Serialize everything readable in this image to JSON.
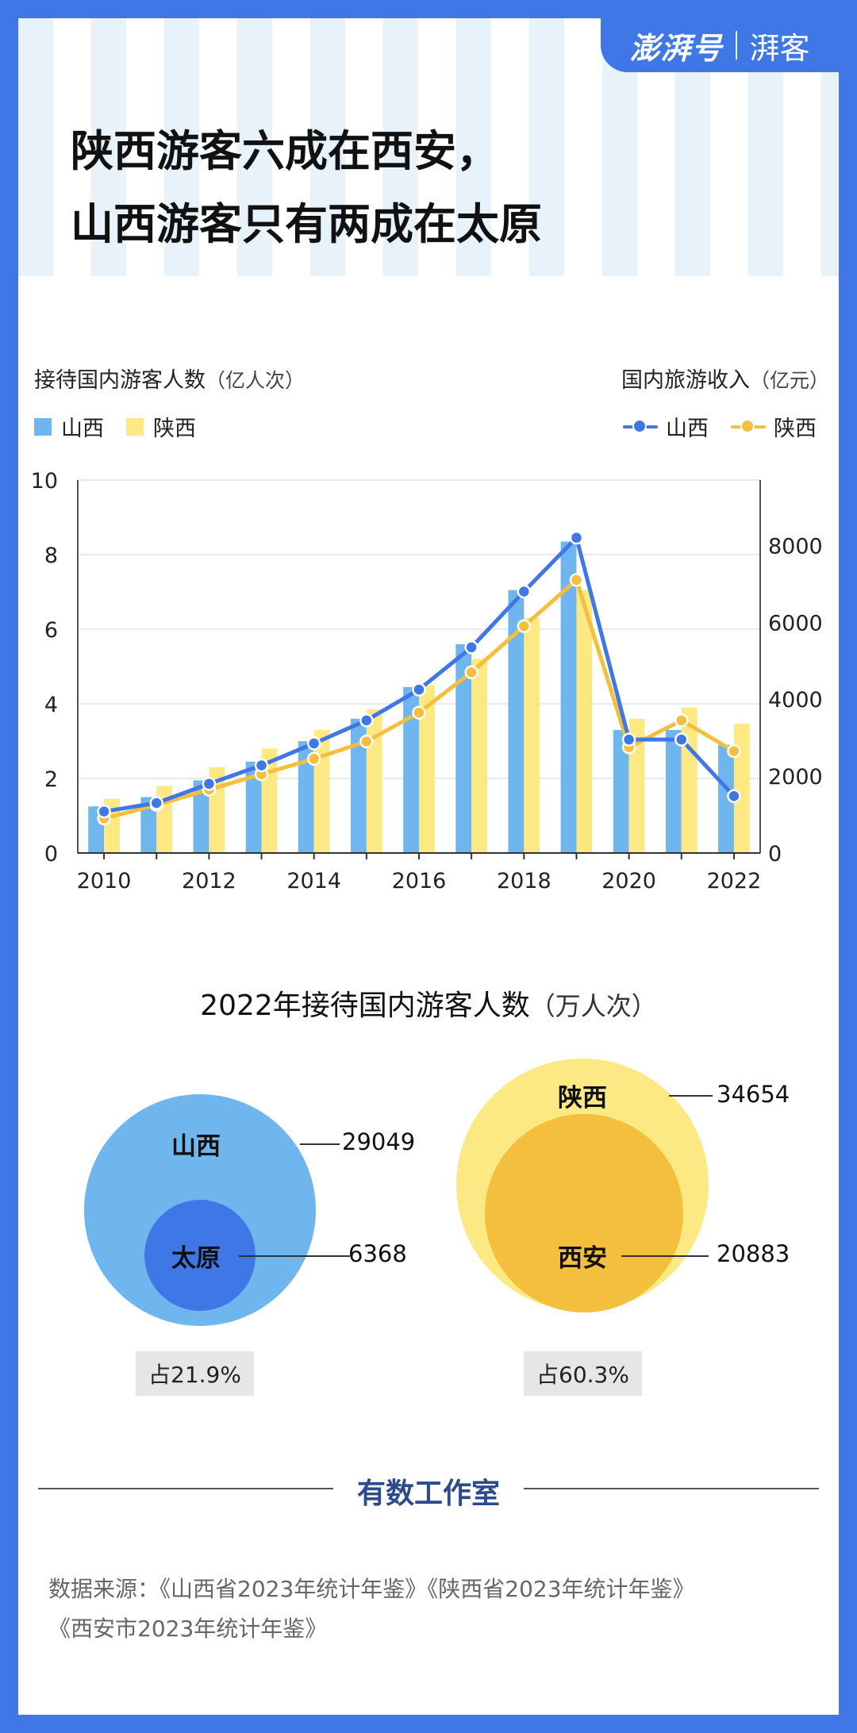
{
  "brand": {
    "name": "澎湃号",
    "channel": "湃客"
  },
  "title": {
    "line1": "陕西游客六成在西安，",
    "line2": "山西游客只有两成在太原"
  },
  "chart_main": {
    "left_title": "接待国内游客人数",
    "left_unit": "（亿人次）",
    "right_title": "国内旅游收入",
    "right_unit": "（亿元）",
    "legend_bars": [
      "山西",
      "陕西"
    ],
    "legend_lines": [
      "山西",
      "陕西"
    ]
  },
  "chart_data": {
    "type": "bar",
    "x": [
      2010,
      2011,
      2012,
      2013,
      2014,
      2015,
      2016,
      2017,
      2018,
      2019,
      2020,
      2021,
      2022
    ],
    "x_tick_labels": [
      "2010",
      "2012",
      "2014",
      "2016",
      "2018",
      "2020",
      "2022"
    ],
    "y_left": {
      "label": "接待国内游客人数（亿人次）",
      "range": [
        0,
        10
      ],
      "ticks": [
        0,
        2,
        4,
        6,
        8,
        10
      ]
    },
    "y_right": {
      "label": "国内旅游收入（亿元）",
      "range": [
        0,
        9700
      ],
      "ticks": [
        0,
        2000,
        4000,
        6000,
        8000
      ]
    },
    "series": [
      {
        "name": "山西",
        "kind": "bar",
        "axis": "left",
        "color": "#6fb5ee",
        "values": [
          1.25,
          1.5,
          1.95,
          2.45,
          3.0,
          3.6,
          4.45,
          5.6,
          7.05,
          8.35,
          3.3,
          3.3,
          2.9
        ]
      },
      {
        "name": "陕西",
        "kind": "bar",
        "axis": "left",
        "color": "#fde983",
        "values": [
          1.45,
          1.8,
          2.3,
          2.8,
          3.3,
          3.85,
          4.5,
          5.2,
          6.3,
          7.05,
          3.6,
          3.9,
          3.47
        ]
      },
      {
        "name": "山西",
        "kind": "line",
        "axis": "right",
        "color": "#3f78e6",
        "values": [
          1080,
          1300,
          1800,
          2280,
          2850,
          3450,
          4250,
          5350,
          6800,
          8200,
          2950,
          2950,
          1480
        ]
      },
      {
        "name": "陕西",
        "kind": "line",
        "axis": "right",
        "color": "#f3bf3d",
        "values": [
          900,
          1250,
          1650,
          2050,
          2450,
          2900,
          3650,
          4700,
          5900,
          7100,
          2750,
          3450,
          2650
        ]
      }
    ],
    "grid": true
  },
  "section2": {
    "title": "2022年接待国内游客人数",
    "unit": "（万人次）",
    "shanxi": {
      "label": "山西",
      "value": "29049",
      "city_label": "太原",
      "city_value": "6368",
      "share": "占21.9%"
    },
    "shaanxi": {
      "label": "陕西",
      "value": "34654",
      "city_label": "西安",
      "city_value": "20883",
      "share": "占60.3%"
    }
  },
  "footer": {
    "studio": "有数工作室",
    "source_line1": "数据来源：《山西省2023年统计年鉴》《陕西省2023年统计年鉴》",
    "source_line2": "《西安市2023年统计年鉴》"
  }
}
